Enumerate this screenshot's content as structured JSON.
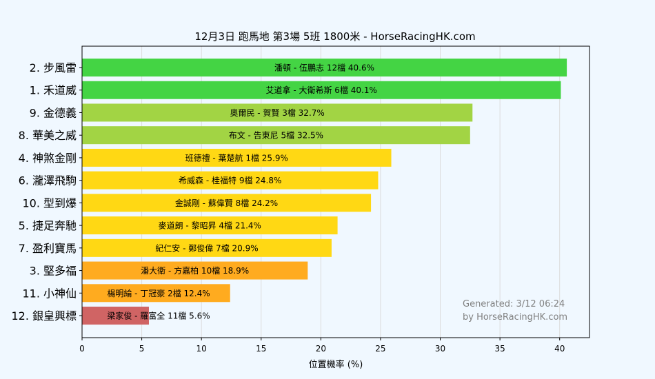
{
  "chart_data": {
    "type": "bar",
    "orientation": "horizontal",
    "title": "12月3日  跑馬地  第3場  5班  1800米 - HorseRacingHK.com",
    "xlabel": "位置機率 (%)",
    "ylabel": "",
    "xlim": [
      0,
      42.5
    ],
    "xticks": [
      0,
      5,
      10,
      15,
      20,
      25,
      30,
      35,
      40
    ],
    "grid": "vertical",
    "categories": [
      "2. 步風雷",
      "1. 禾道威",
      "9. 金德義",
      "8. 華美之威",
      "4. 神煞金剛",
      "6. 瀧澤飛駒",
      "10. 型到爆",
      "5. 捷足奔馳",
      "7. 盈利寶馬",
      "3. 堅多福",
      "11. 小神仙",
      "12. 銀皇興標"
    ],
    "values": [
      40.6,
      40.1,
      32.7,
      32.5,
      25.9,
      24.8,
      24.2,
      21.4,
      20.9,
      18.9,
      12.4,
      5.6
    ],
    "bar_labels": [
      "潘頓 - 伍鵬志 12檔  40.6%",
      "艾道拿 - 大衛希斯 6檔  40.1%",
      "奧爾民 - 賀賢 3檔  32.7%",
      "布文 - 告東尼 5檔  32.5%",
      "班德禮 - 葉楚航 1檔  25.9%",
      "希威森 - 桂福特 9檔  24.8%",
      "金誠剛 - 蘇偉賢 8檔  24.2%",
      "麥道朗 - 黎昭昇 4檔  21.4%",
      "紀仁安 - 鄭俊偉 7檔  20.9%",
      "潘大衛 - 方嘉柏 10檔  18.9%",
      "楊明綸 - 丁冠豪 2檔  12.4%",
      "梁家俊 - 羅富全 11檔  5.6%"
    ],
    "colors": [
      "#44d444",
      "#44d444",
      "#a2d444",
      "#a2d444",
      "#ffd814",
      "#ffd814",
      "#ffd814",
      "#ffd814",
      "#ffd814",
      "#ffab1f",
      "#ffab1f",
      "#d06464"
    ],
    "annotation": [
      "Generated: 3/12 06:24",
      "by HorseRacingHK.com"
    ]
  }
}
